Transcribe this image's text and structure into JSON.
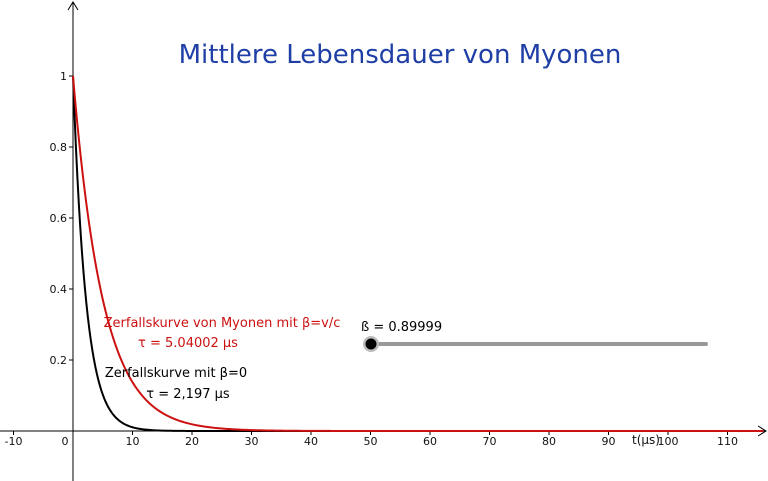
{
  "chart_data": {
    "type": "line",
    "title": "Mittlere Lebensdauer von Myonen",
    "xlabel": "t(μs)",
    "ylabel": "",
    "xlim": [
      -12,
      116
    ],
    "ylim": [
      -0.03,
      1.18
    ],
    "x_ticks": [
      -10,
      0,
      10,
      20,
      30,
      40,
      50,
      60,
      70,
      80,
      90,
      100,
      110
    ],
    "y_ticks": [
      0.2,
      0.4,
      0.6,
      0.8,
      1
    ],
    "x_tick_labels": [
      "-10",
      "0",
      "10",
      "20",
      "30",
      "40",
      "50",
      "60",
      "70",
      "80",
      "90",
      "100",
      "110"
    ],
    "y_tick_labels": [
      "0.2",
      "0.4",
      "0.6",
      "0.8",
      "1"
    ],
    "grid": false,
    "series": [
      {
        "name": "Zerfallskurve mit β=0",
        "tau": 2.197,
        "x_start": 0,
        "x_end": 116,
        "color": "#000000",
        "label_lines": [
          "Zerfallskurve mit β=0",
          "τ = 2,197 μs"
        ]
      },
      {
        "name": "Zerfallskurve von Myonen mit β=v/c",
        "tau": 5.04002,
        "x_start": 0,
        "x_end": 116,
        "color": "#cc1111",
        "label_lines": [
          "Zerfallskurve von Myonen mit β=v/c",
          "τ = 5.04002 μs"
        ]
      }
    ]
  },
  "slider": {
    "label": "ß = 0.89999",
    "value": 0.89999,
    "position_fraction": 0.0
  },
  "colors": {
    "title": "#1f3fa6",
    "slider_track": "#999999",
    "slider_knob": "#000000"
  }
}
